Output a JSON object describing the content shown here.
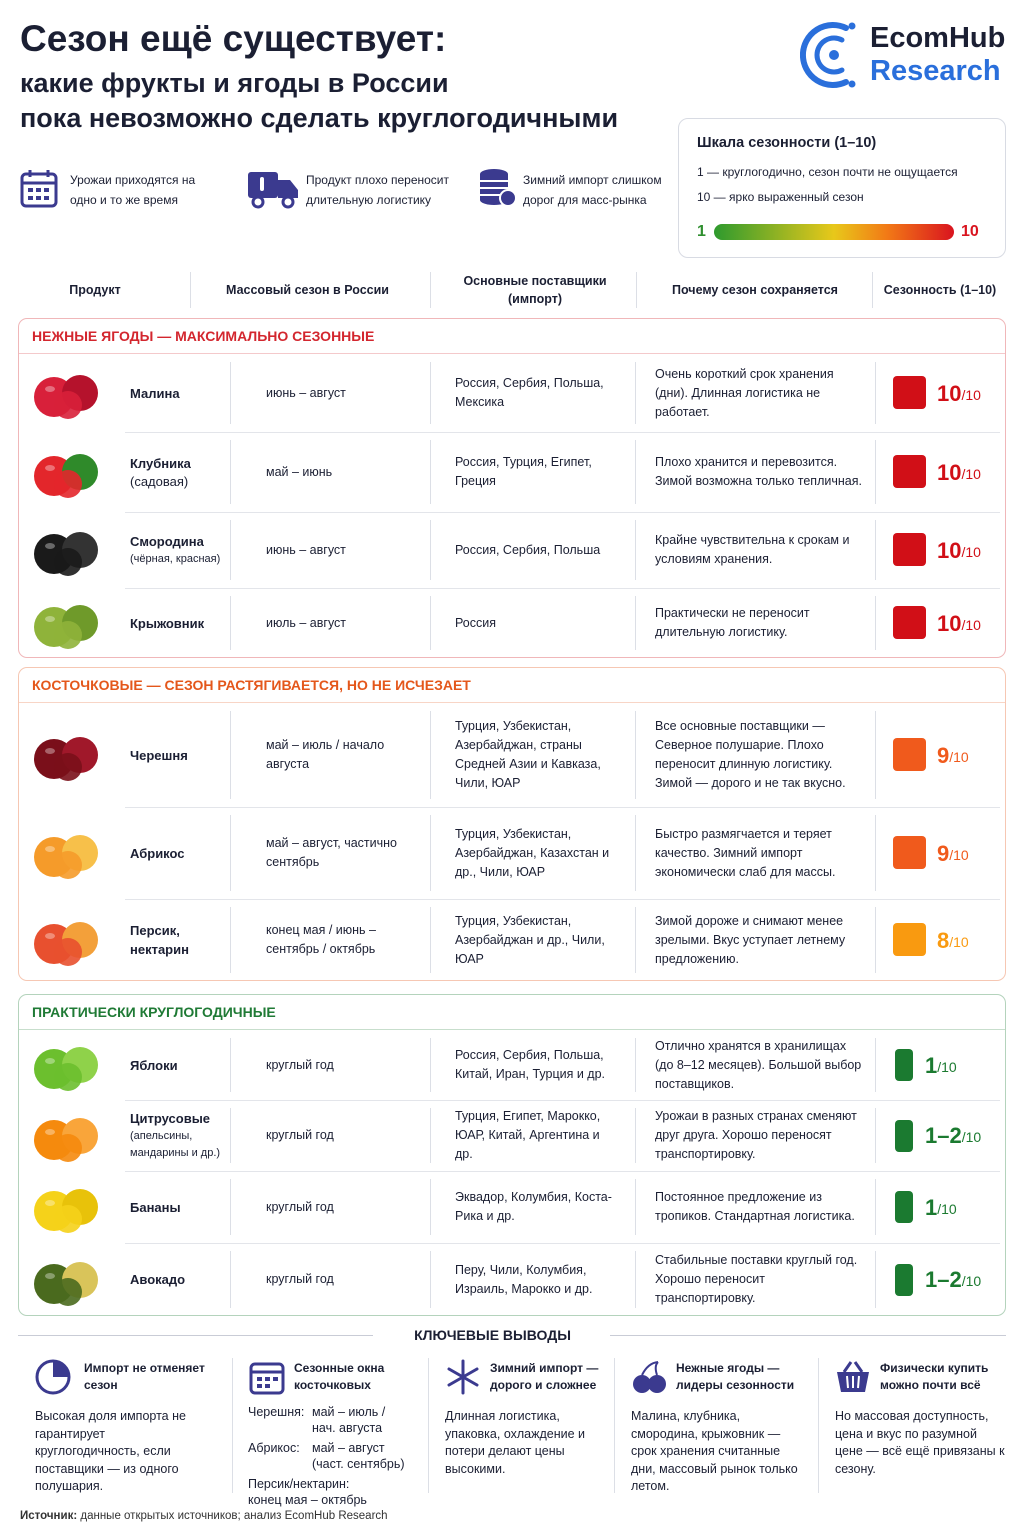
{
  "header": {
    "title": "Сезон ещё существует:",
    "subtitle_lines": [
      "какие фрукты и ягоды в России",
      "пока невозможно сделать круглогодичными"
    ],
    "logo": [
      "EcomHub",
      "Research"
    ]
  },
  "reasons": [
    "Урожаи приходятся на одно и то же время",
    "Продукт плохо переносит длительную логистику",
    "Зимний импорт слишком дорог для масс-рынка"
  ],
  "scale": {
    "title": "Шкала сезонности (1–10)",
    "lines": [
      "1 — круглогодично, сезон почти не ощущается",
      "10 — ярко выраженный сезон"
    ],
    "min": "1",
    "max": "10"
  },
  "table": {
    "columns": [
      "Продукт",
      "Массовый сезон в России",
      "Основные поставщики (импорт)",
      "Почему сезон сохраняется",
      "Сезонность (1–10)"
    ],
    "score_suffix": "/10",
    "sections": [
      {
        "title": "НЕЖНЫЕ ЯГОДЫ — МАКСИМАЛЬНО СЕЗОННЫЕ",
        "color": "#d3262e",
        "rows": [
          {
            "name": "Малина",
            "season": "июнь – август",
            "suppliers": "Россия, Сербия, Польша, Мексика",
            "reason": "Очень короткий срок хранения (дни). Длинная логистика не работает.",
            "score": "10",
            "color": "#d10f17"
          },
          {
            "name": "Клубника",
            "note": "(садовая)",
            "season": "май – июнь",
            "suppliers": "Россия, Турция, Египет, Греция",
            "reason": "Плохо хранится и перевозится. Зимой возможна только тепличная.",
            "score": "10",
            "color": "#d10f17"
          },
          {
            "name": "Смородина",
            "note": "(чёрная, красная)",
            "season": "июнь – август",
            "suppliers": "Россия, Сербия, Польша",
            "reason": "Крайне чувствительна к срокам и условиям хранения.",
            "score": "10",
            "color": "#d10f17"
          },
          {
            "name": "Крыжовник",
            "season": "июль – август",
            "suppliers": "Россия",
            "reason": "Практически не переносит длительную логистику.",
            "score": "10",
            "color": "#d10f17"
          }
        ]
      },
      {
        "title": "КОСТОЧКОВЫЕ — СЕЗОН РАСТЯГИВАЕТСЯ, НО НЕ ИСЧЕЗАЕТ",
        "color": "#e4571b",
        "rows": [
          {
            "name": "Черешня",
            "season": "май – июль / начало августа",
            "suppliers": "Турция, Узбекистан, Азербайджан, страны Средней Азии и Кавказа, Чили, ЮАР",
            "reason": "Все основные поставщики — Северное полушарие. Плохо переносит длинную логистику. Зимой — дорого и не так вкусно.",
            "score": "9",
            "color": "#f05a1c"
          },
          {
            "name": "Абрикос",
            "season": "май – август, частично сентябрь",
            "suppliers": "Турция, Узбекистан, Азербайджан, Казахстан и др., Чили, ЮАР",
            "reason": "Быстро размягчается и теряет качество. Зимний импорт экономически слаб для массы.",
            "score": "9",
            "color": "#f05a1c"
          },
          {
            "name": "Персик, нектарин",
            "season": "конец мая / июнь – сентябрь / октябрь",
            "suppliers": "Турция, Узбекистан, Азербайджан и др., Чили, ЮАР",
            "reason": "Зимой дороже и снимают менее зрелыми. Вкус уступает летнему предложению.",
            "score": "8",
            "color": "#f99a10"
          }
        ]
      },
      {
        "title": "ПРАКТИЧЕСКИ КРУГЛОГОДИЧНЫЕ",
        "color": "#1f7a35",
        "rows": [
          {
            "name": "Яблоки",
            "season": "круглый год",
            "suppliers": "Россия, Сербия, Польша, Китай, Иран, Турция и др.",
            "reason": "Отлично хранятся в хранилищах (до 8–12 месяцев). Большой выбор поставщиков.",
            "score": "1",
            "color": "#1b7a30"
          },
          {
            "name": "Цитрусовые",
            "note": "(апельсины, мандарины и др.)",
            "season": "круглый год",
            "suppliers": "Турция, Египет, Марокко, ЮАР, Китай, Аргентина и др.",
            "reason": "Урожаи в разных странах сменяют друг друга. Хорошо переносят транспортировку.",
            "score": "1–2",
            "color": "#1b7a30"
          },
          {
            "name": "Бананы",
            "season": "круглый год",
            "suppliers": "Эквадор, Колумбия, Коста-Рика и др.",
            "reason": "Постоянное предложение из тропиков. Стандартная логистика.",
            "score": "1",
            "color": "#1b7a30"
          },
          {
            "name": "Авокадо",
            "season": "круглый год",
            "suppliers": "Перу, Чили, Колумбия, Израиль, Марокко и др.",
            "reason": "Стабильные поставки круглый год. Хорошо переносит транспортировку.",
            "score": "1–2",
            "color": "#1b7a30"
          }
        ]
      }
    ]
  },
  "conclusions": {
    "title": "КЛЮЧЕВЫЕ ВЫВОДЫ",
    "items": [
      {
        "title": "Импорт не отменяет сезон",
        "body": "Высокая доля импорта не гарантирует круглогодичность, если поставщики — из одного полушария."
      },
      {
        "title": "Сезонные окна косточковых",
        "list": [
          {
            "label": "Черешня:",
            "text": "май – июль / нач. августа"
          },
          {
            "label": "Абрикос:",
            "text": "май – август (част. сентябрь)"
          },
          {
            "label": "Персик/нектарин:",
            "text": "конец мая – октябрь"
          }
        ]
      },
      {
        "title": "Зимний импорт — дорого и сложнее",
        "body": "Длинная логистика, упаковка, охлаждение и потери делают цены высокими."
      },
      {
        "title": "Нежные ягоды — лидеры сезонности",
        "body": "Малина, клубника, смородина, крыжовник — срок хранения считанные дни, массовый рынок только летом."
      },
      {
        "title": "Физически купить можно почти всё",
        "body": "Но массовая доступность, цена и вкус по разумной цене — всё ещё привязаны к сезону."
      }
    ]
  },
  "source": {
    "label": "Источник:",
    "text": "данные открытых источников; анализ EcomHub Research"
  }
}
